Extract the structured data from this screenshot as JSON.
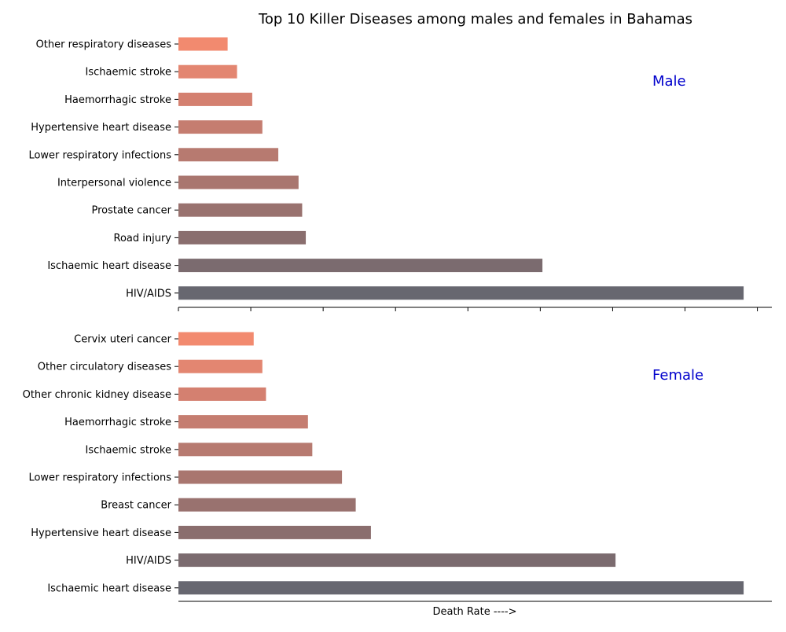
{
  "chart_data": {
    "type": "bar",
    "orientation": "horizontal",
    "title": "Top 10 Killer Diseases among males and females in Bahamas",
    "xlabel": "Death Rate ---->",
    "ylabel": "",
    "xlim": [
      0,
      82
    ],
    "shared_x_axis": true,
    "grid": false,
    "panels": [
      {
        "label": "Male",
        "label_color": "#0000cc",
        "categories": [
          "Other respiratory diseases",
          "Ischaemic stroke",
          "Haemorrhagic stroke",
          "Hypertensive heart disease",
          "Lower respiratory infections",
          "Interpersonal violence",
          "Prostate cancer",
          "Road injury",
          "Ischaemic heart disease",
          "HIV/AIDS"
        ],
        "values": [
          6.8,
          8.1,
          10.2,
          11.6,
          13.8,
          16.6,
          17.1,
          17.6,
          50.3,
          78.1
        ]
      },
      {
        "label": "Female",
        "label_color": "#0000cc",
        "categories": [
          "Cervix uteri cancer",
          "Other circulatory diseases",
          "Other chronic kidney disease",
          "Haemorrhagic stroke",
          "Ischaemic stroke",
          "Lower respiratory infections",
          "Breast cancer",
          "Hypertensive heart disease",
          "HIV/AIDS",
          "Ischaemic heart disease"
        ],
        "values": [
          10.4,
          11.6,
          12.1,
          17.9,
          18.5,
          22.6,
          24.5,
          26.6,
          60.4,
          78.1
        ]
      }
    ],
    "bar_colors": [
      "#f28a6f",
      "#e38671",
      "#d48070",
      "#c57d70",
      "#b77a70",
      "#a9766f",
      "#99726f",
      "#8a6e6e",
      "#7b6b6f",
      "#676770"
    ]
  }
}
